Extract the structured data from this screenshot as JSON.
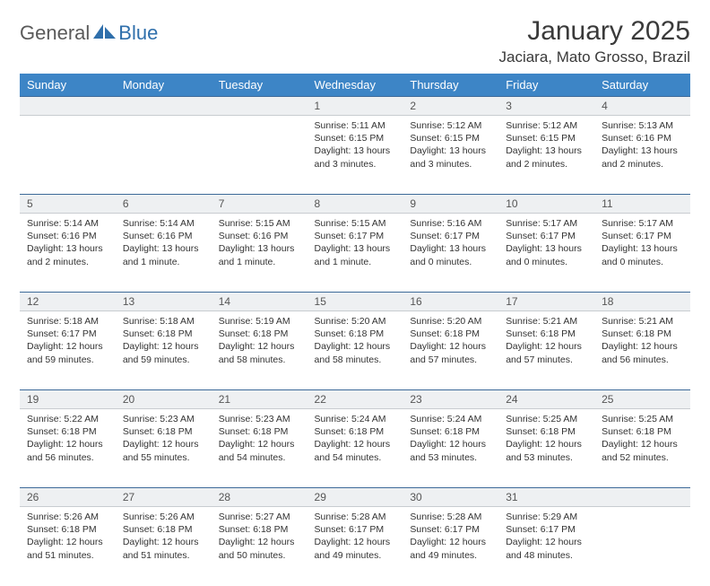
{
  "logo": {
    "part1": "General",
    "part2": "Blue"
  },
  "title": "January 2025",
  "location": "Jaciara, Mato Grosso, Brazil",
  "colors": {
    "header_bg": "#3d85c6",
    "header_text": "#ffffff",
    "daynum_bg": "#eef0f2",
    "daynum_border_top": "#3d6a99",
    "body_text": "#333333",
    "logo_gray": "#5a5a5a",
    "logo_blue": "#2f6fab"
  },
  "day_headers": [
    "Sunday",
    "Monday",
    "Tuesday",
    "Wednesday",
    "Thursday",
    "Friday",
    "Saturday"
  ],
  "weeks": [
    [
      {
        "n": "",
        "sr": "",
        "ss": "",
        "dl": ""
      },
      {
        "n": "",
        "sr": "",
        "ss": "",
        "dl": ""
      },
      {
        "n": "",
        "sr": "",
        "ss": "",
        "dl": ""
      },
      {
        "n": "1",
        "sr": "Sunrise: 5:11 AM",
        "ss": "Sunset: 6:15 PM",
        "dl": "Daylight: 13 hours and 3 minutes."
      },
      {
        "n": "2",
        "sr": "Sunrise: 5:12 AM",
        "ss": "Sunset: 6:15 PM",
        "dl": "Daylight: 13 hours and 3 minutes."
      },
      {
        "n": "3",
        "sr": "Sunrise: 5:12 AM",
        "ss": "Sunset: 6:15 PM",
        "dl": "Daylight: 13 hours and 2 minutes."
      },
      {
        "n": "4",
        "sr": "Sunrise: 5:13 AM",
        "ss": "Sunset: 6:16 PM",
        "dl": "Daylight: 13 hours and 2 minutes."
      }
    ],
    [
      {
        "n": "5",
        "sr": "Sunrise: 5:14 AM",
        "ss": "Sunset: 6:16 PM",
        "dl": "Daylight: 13 hours and 2 minutes."
      },
      {
        "n": "6",
        "sr": "Sunrise: 5:14 AM",
        "ss": "Sunset: 6:16 PM",
        "dl": "Daylight: 13 hours and 1 minute."
      },
      {
        "n": "7",
        "sr": "Sunrise: 5:15 AM",
        "ss": "Sunset: 6:16 PM",
        "dl": "Daylight: 13 hours and 1 minute."
      },
      {
        "n": "8",
        "sr": "Sunrise: 5:15 AM",
        "ss": "Sunset: 6:17 PM",
        "dl": "Daylight: 13 hours and 1 minute."
      },
      {
        "n": "9",
        "sr": "Sunrise: 5:16 AM",
        "ss": "Sunset: 6:17 PM",
        "dl": "Daylight: 13 hours and 0 minutes."
      },
      {
        "n": "10",
        "sr": "Sunrise: 5:17 AM",
        "ss": "Sunset: 6:17 PM",
        "dl": "Daylight: 13 hours and 0 minutes."
      },
      {
        "n": "11",
        "sr": "Sunrise: 5:17 AM",
        "ss": "Sunset: 6:17 PM",
        "dl": "Daylight: 13 hours and 0 minutes."
      }
    ],
    [
      {
        "n": "12",
        "sr": "Sunrise: 5:18 AM",
        "ss": "Sunset: 6:17 PM",
        "dl": "Daylight: 12 hours and 59 minutes."
      },
      {
        "n": "13",
        "sr": "Sunrise: 5:18 AM",
        "ss": "Sunset: 6:18 PM",
        "dl": "Daylight: 12 hours and 59 minutes."
      },
      {
        "n": "14",
        "sr": "Sunrise: 5:19 AM",
        "ss": "Sunset: 6:18 PM",
        "dl": "Daylight: 12 hours and 58 minutes."
      },
      {
        "n": "15",
        "sr": "Sunrise: 5:20 AM",
        "ss": "Sunset: 6:18 PM",
        "dl": "Daylight: 12 hours and 58 minutes."
      },
      {
        "n": "16",
        "sr": "Sunrise: 5:20 AM",
        "ss": "Sunset: 6:18 PM",
        "dl": "Daylight: 12 hours and 57 minutes."
      },
      {
        "n": "17",
        "sr": "Sunrise: 5:21 AM",
        "ss": "Sunset: 6:18 PM",
        "dl": "Daylight: 12 hours and 57 minutes."
      },
      {
        "n": "18",
        "sr": "Sunrise: 5:21 AM",
        "ss": "Sunset: 6:18 PM",
        "dl": "Daylight: 12 hours and 56 minutes."
      }
    ],
    [
      {
        "n": "19",
        "sr": "Sunrise: 5:22 AM",
        "ss": "Sunset: 6:18 PM",
        "dl": "Daylight: 12 hours and 56 minutes."
      },
      {
        "n": "20",
        "sr": "Sunrise: 5:23 AM",
        "ss": "Sunset: 6:18 PM",
        "dl": "Daylight: 12 hours and 55 minutes."
      },
      {
        "n": "21",
        "sr": "Sunrise: 5:23 AM",
        "ss": "Sunset: 6:18 PM",
        "dl": "Daylight: 12 hours and 54 minutes."
      },
      {
        "n": "22",
        "sr": "Sunrise: 5:24 AM",
        "ss": "Sunset: 6:18 PM",
        "dl": "Daylight: 12 hours and 54 minutes."
      },
      {
        "n": "23",
        "sr": "Sunrise: 5:24 AM",
        "ss": "Sunset: 6:18 PM",
        "dl": "Daylight: 12 hours and 53 minutes."
      },
      {
        "n": "24",
        "sr": "Sunrise: 5:25 AM",
        "ss": "Sunset: 6:18 PM",
        "dl": "Daylight: 12 hours and 53 minutes."
      },
      {
        "n": "25",
        "sr": "Sunrise: 5:25 AM",
        "ss": "Sunset: 6:18 PM",
        "dl": "Daylight: 12 hours and 52 minutes."
      }
    ],
    [
      {
        "n": "26",
        "sr": "Sunrise: 5:26 AM",
        "ss": "Sunset: 6:18 PM",
        "dl": "Daylight: 12 hours and 51 minutes."
      },
      {
        "n": "27",
        "sr": "Sunrise: 5:26 AM",
        "ss": "Sunset: 6:18 PM",
        "dl": "Daylight: 12 hours and 51 minutes."
      },
      {
        "n": "28",
        "sr": "Sunrise: 5:27 AM",
        "ss": "Sunset: 6:18 PM",
        "dl": "Daylight: 12 hours and 50 minutes."
      },
      {
        "n": "29",
        "sr": "Sunrise: 5:28 AM",
        "ss": "Sunset: 6:17 PM",
        "dl": "Daylight: 12 hours and 49 minutes."
      },
      {
        "n": "30",
        "sr": "Sunrise: 5:28 AM",
        "ss": "Sunset: 6:17 PM",
        "dl": "Daylight: 12 hours and 49 minutes."
      },
      {
        "n": "31",
        "sr": "Sunrise: 5:29 AM",
        "ss": "Sunset: 6:17 PM",
        "dl": "Daylight: 12 hours and 48 minutes."
      },
      {
        "n": "",
        "sr": "",
        "ss": "",
        "dl": ""
      }
    ]
  ]
}
